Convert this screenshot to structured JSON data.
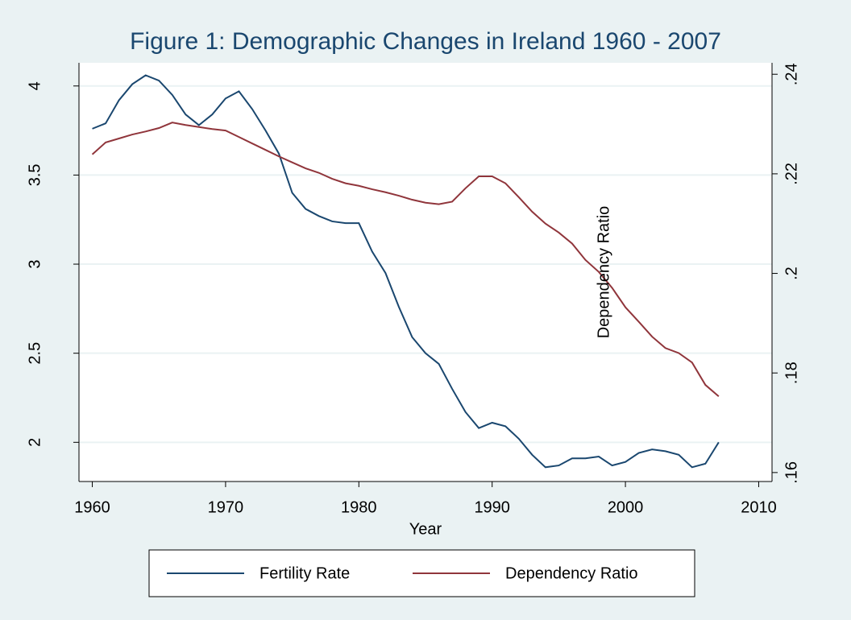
{
  "chart_data": {
    "type": "line",
    "title": "Figure 1: Demographic Changes in Ireland 1960 - 2007",
    "x_label": "Year",
    "annotations": [
      "Dependency Ratio"
    ],
    "x": [
      1960,
      1961,
      1962,
      1963,
      1964,
      1965,
      1966,
      1967,
      1968,
      1969,
      1970,
      1971,
      1972,
      1973,
      1974,
      1975,
      1976,
      1977,
      1978,
      1979,
      1980,
      1981,
      1982,
      1983,
      1984,
      1985,
      1986,
      1987,
      1988,
      1989,
      1990,
      1991,
      1992,
      1993,
      1994,
      1995,
      1996,
      1997,
      1998,
      1999,
      2000,
      2001,
      2002,
      2003,
      2004,
      2005,
      2006,
      2007
    ],
    "series": [
      {
        "name": "Fertility Rate",
        "color": "#1a476f",
        "axis": "y",
        "values": [
          3.76,
          3.79,
          3.92,
          4.01,
          4.06,
          4.03,
          3.95,
          3.84,
          3.78,
          3.84,
          3.93,
          3.97,
          3.87,
          3.75,
          3.62,
          3.4,
          3.31,
          3.27,
          3.24,
          3.23,
          3.23,
          3.07,
          2.95,
          2.76,
          2.59,
          2.5,
          2.44,
          2.3,
          2.17,
          2.08,
          2.11,
          2.09,
          2.02,
          1.93,
          1.86,
          1.87,
          1.91,
          1.91,
          1.92,
          1.87,
          1.89,
          1.94,
          1.96,
          1.95,
          1.93,
          1.86,
          1.88,
          2.0
        ]
      },
      {
        "name": "Dependency Ratio",
        "color": "#90353b",
        "axis": "y2",
        "values": [
          0.2239,
          0.2263,
          0.2271,
          0.2279,
          0.2285,
          0.2292,
          0.2303,
          0.2298,
          0.2294,
          0.229,
          0.2287,
          0.2274,
          0.2261,
          0.2248,
          0.2235,
          0.2223,
          0.2211,
          0.2202,
          0.219,
          0.2181,
          0.2176,
          0.2169,
          0.2163,
          0.2156,
          0.2148,
          0.2142,
          0.2139,
          0.2144,
          0.2171,
          0.2195,
          0.2195,
          0.2181,
          0.2153,
          0.2124,
          0.21,
          0.2082,
          0.206,
          0.2027,
          0.2003,
          0.1971,
          0.1932,
          0.1903,
          0.1873,
          0.185,
          0.184,
          0.1821,
          0.1776,
          0.1753
        ]
      }
    ],
    "xlim": [
      1959,
      2011
    ],
    "xticks": [
      1960,
      1970,
      1980,
      1990,
      2000,
      2010
    ],
    "ylim": [
      1.78,
      4.13
    ],
    "yticks": [
      2,
      2.5,
      3,
      3.5,
      4
    ],
    "y2lim": [
      0.1582,
      0.2423
    ],
    "y2ticks": [
      {
        "value": 0.16,
        "label": ".16"
      },
      {
        "value": 0.18,
        "label": ".18"
      },
      {
        "value": 0.2,
        "label": ".2"
      },
      {
        "value": 0.22,
        "label": ".22"
      },
      {
        "value": 0.24,
        "label": ".24"
      }
    ],
    "grid": true,
    "legend": "bottom"
  }
}
